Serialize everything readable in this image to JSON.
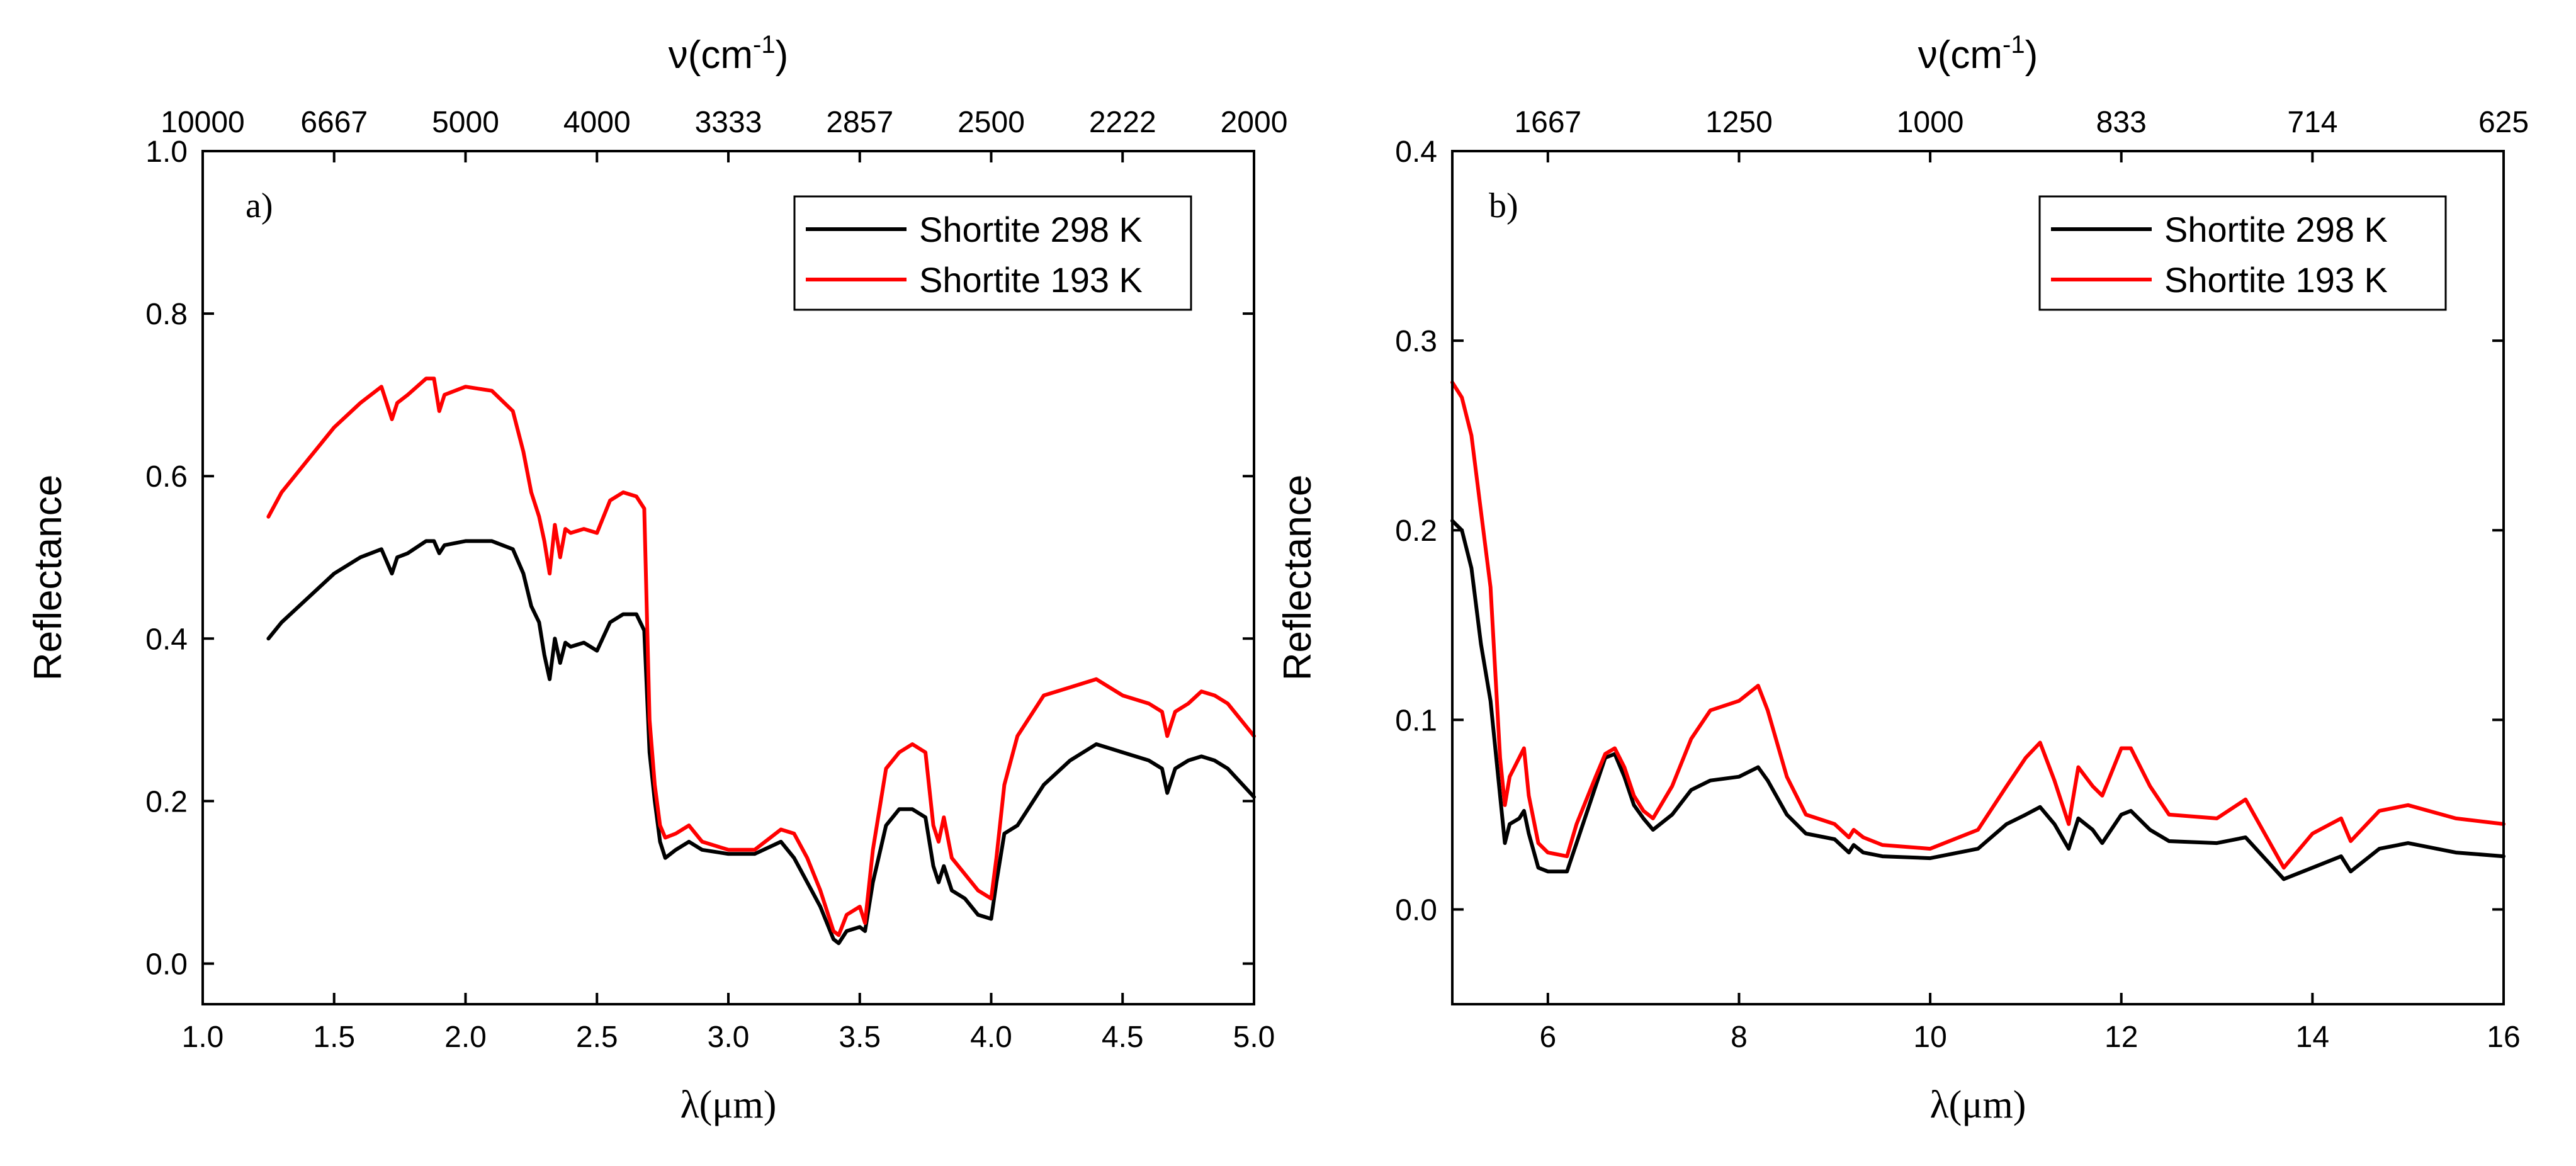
{
  "chart_data": [
    {
      "type": "line",
      "panel_label": "a)",
      "xlabel": "λ(μm)",
      "ylabel": "Reflectance",
      "top_axis_title": "ν(cm",
      "top_axis_title_sup": "-1",
      "top_axis_title_close": ")",
      "xlim": [
        1.0,
        5.0
      ],
      "ylim": [
        -0.05,
        1.0
      ],
      "x_ticks": [
        1.0,
        1.5,
        2.0,
        2.5,
        3.0,
        3.5,
        4.0,
        4.5,
        5.0
      ],
      "x_tick_labels": [
        "1.0",
        "1.5",
        "2.0",
        "2.5",
        "3.0",
        "3.5",
        "4.0",
        "4.5",
        "5.0"
      ],
      "y_ticks": [
        0.0,
        0.2,
        0.4,
        0.6,
        0.8,
        1.0
      ],
      "y_tick_labels": [
        "0.0",
        "0.2",
        "0.4",
        "0.6",
        "0.8",
        "1.0"
      ],
      "top_ticks_um": [
        1.0,
        1.5,
        2.0,
        2.5,
        3.0,
        3.5,
        4.0,
        4.5,
        5.0
      ],
      "top_tick_labels": [
        "10000",
        "6667",
        "5000",
        "4000",
        "3333",
        "2857",
        "2500",
        "2222",
        "2000"
      ],
      "legend_position": "top-right",
      "series": [
        {
          "name": "Shortite 298 K",
          "color": "#000000",
          "x": [
            1.25,
            1.3,
            1.4,
            1.5,
            1.6,
            1.68,
            1.72,
            1.74,
            1.78,
            1.85,
            1.88,
            1.9,
            1.92,
            2.0,
            2.1,
            2.18,
            2.22,
            2.25,
            2.28,
            2.3,
            2.32,
            2.34,
            2.36,
            2.38,
            2.4,
            2.45,
            2.5,
            2.55,
            2.6,
            2.65,
            2.68,
            2.7,
            2.72,
            2.74,
            2.76,
            2.8,
            2.85,
            2.9,
            3.0,
            3.1,
            3.2,
            3.25,
            3.3,
            3.35,
            3.4,
            3.42,
            3.45,
            3.5,
            3.52,
            3.55,
            3.6,
            3.65,
            3.7,
            3.75,
            3.78,
            3.8,
            3.82,
            3.85,
            3.9,
            3.95,
            4.0,
            4.02,
            4.05,
            4.1,
            4.2,
            4.3,
            4.35,
            4.4,
            4.5,
            4.6,
            4.65,
            4.67,
            4.7,
            4.75,
            4.8,
            4.85,
            4.9,
            5.0
          ],
          "y": [
            0.4,
            0.42,
            0.45,
            0.48,
            0.5,
            0.51,
            0.48,
            0.5,
            0.505,
            0.52,
            0.52,
            0.505,
            0.515,
            0.52,
            0.52,
            0.51,
            0.48,
            0.44,
            0.42,
            0.38,
            0.35,
            0.4,
            0.37,
            0.395,
            0.39,
            0.395,
            0.385,
            0.42,
            0.43,
            0.43,
            0.41,
            0.26,
            0.2,
            0.15,
            0.13,
            0.14,
            0.15,
            0.14,
            0.135,
            0.135,
            0.15,
            0.13,
            0.1,
            0.07,
            0.03,
            0.025,
            0.04,
            0.045,
            0.04,
            0.1,
            0.17,
            0.19,
            0.19,
            0.18,
            0.12,
            0.1,
            0.12,
            0.09,
            0.08,
            0.06,
            0.055,
            0.1,
            0.16,
            0.17,
            0.22,
            0.25,
            0.26,
            0.27,
            0.26,
            0.25,
            0.24,
            0.21,
            0.24,
            0.25,
            0.255,
            0.25,
            0.24,
            0.205
          ]
        },
        {
          "name": "Shortite 193 K",
          "color": "#ff0000",
          "x": [
            1.25,
            1.3,
            1.4,
            1.5,
            1.6,
            1.68,
            1.72,
            1.74,
            1.78,
            1.85,
            1.88,
            1.9,
            1.92,
            2.0,
            2.1,
            2.18,
            2.22,
            2.25,
            2.28,
            2.3,
            2.32,
            2.34,
            2.36,
            2.38,
            2.4,
            2.45,
            2.5,
            2.55,
            2.6,
            2.65,
            2.68,
            2.7,
            2.72,
            2.74,
            2.76,
            2.8,
            2.85,
            2.9,
            3.0,
            3.1,
            3.2,
            3.25,
            3.3,
            3.35,
            3.4,
            3.42,
            3.45,
            3.5,
            3.52,
            3.55,
            3.6,
            3.65,
            3.7,
            3.75,
            3.78,
            3.8,
            3.82,
            3.85,
            3.9,
            3.95,
            4.0,
            4.02,
            4.05,
            4.1,
            4.2,
            4.3,
            4.35,
            4.4,
            4.5,
            4.6,
            4.65,
            4.67,
            4.7,
            4.75,
            4.8,
            4.85,
            4.9,
            5.0
          ],
          "y": [
            0.55,
            0.58,
            0.62,
            0.66,
            0.69,
            0.71,
            0.67,
            0.69,
            0.7,
            0.72,
            0.72,
            0.68,
            0.7,
            0.71,
            0.705,
            0.68,
            0.63,
            0.58,
            0.55,
            0.52,
            0.48,
            0.54,
            0.5,
            0.535,
            0.53,
            0.535,
            0.53,
            0.57,
            0.58,
            0.575,
            0.56,
            0.3,
            0.22,
            0.17,
            0.155,
            0.16,
            0.17,
            0.15,
            0.14,
            0.14,
            0.165,
            0.16,
            0.13,
            0.09,
            0.04,
            0.035,
            0.06,
            0.07,
            0.05,
            0.14,
            0.24,
            0.26,
            0.27,
            0.26,
            0.17,
            0.15,
            0.18,
            0.13,
            0.11,
            0.09,
            0.08,
            0.13,
            0.22,
            0.28,
            0.33,
            0.34,
            0.345,
            0.35,
            0.33,
            0.32,
            0.31,
            0.28,
            0.31,
            0.32,
            0.335,
            0.33,
            0.32,
            0.28
          ]
        }
      ]
    },
    {
      "type": "line",
      "panel_label": "b)",
      "xlabel": "λ(μm)",
      "ylabel": "Reflectance",
      "top_axis_title": "ν(cm",
      "top_axis_title_sup": "-1",
      "top_axis_title_close": ")",
      "xlim": [
        5.0,
        16.0
      ],
      "ylim": [
        -0.05,
        0.4
      ],
      "x_ticks": [
        6,
        8,
        10,
        12,
        14,
        16
      ],
      "x_tick_labels": [
        "6",
        "8",
        "10",
        "12",
        "14",
        "16"
      ],
      "y_ticks": [
        0.0,
        0.1,
        0.2,
        0.3,
        0.4
      ],
      "y_tick_labels": [
        "0.0",
        "0.1",
        "0.2",
        "0.3",
        "0.4"
      ],
      "top_ticks_um": [
        6.0,
        8.0,
        10.0,
        12.0,
        14.0,
        16.0
      ],
      "top_tick_labels": [
        "1667",
        "1250",
        "1000",
        "833",
        "714",
        "625"
      ],
      "legend_position": "top-right",
      "series": [
        {
          "name": "Shortite 298 K",
          "color": "#000000",
          "x": [
            5.0,
            5.1,
            5.2,
            5.3,
            5.4,
            5.5,
            5.55,
            5.6,
            5.7,
            5.75,
            5.8,
            5.9,
            6.0,
            6.2,
            6.3,
            6.5,
            6.6,
            6.7,
            6.8,
            6.9,
            7.0,
            7.1,
            7.3,
            7.5,
            7.7,
            8.0,
            8.2,
            8.3,
            8.5,
            8.7,
            9.0,
            9.15,
            9.2,
            9.3,
            9.5,
            10.0,
            10.5,
            10.8,
            11.0,
            11.15,
            11.3,
            11.45,
            11.55,
            11.7,
            11.8,
            12.0,
            12.1,
            12.3,
            12.5,
            13.0,
            13.3,
            13.7,
            14.0,
            14.3,
            14.4,
            14.7,
            15.0,
            15.5,
            16.0
          ],
          "y": [
            0.205,
            0.2,
            0.18,
            0.14,
            0.11,
            0.06,
            0.035,
            0.045,
            0.048,
            0.052,
            0.04,
            0.022,
            0.02,
            0.02,
            0.035,
            0.065,
            0.08,
            0.082,
            0.07,
            0.055,
            0.048,
            0.042,
            0.05,
            0.063,
            0.068,
            0.07,
            0.075,
            0.068,
            0.05,
            0.04,
            0.037,
            0.03,
            0.034,
            0.03,
            0.028,
            0.027,
            0.032,
            0.045,
            0.05,
            0.054,
            0.045,
            0.032,
            0.048,
            0.042,
            0.035,
            0.05,
            0.052,
            0.042,
            0.036,
            0.035,
            0.038,
            0.016,
            0.022,
            0.028,
            0.02,
            0.032,
            0.035,
            0.03,
            0.028
          ]
        },
        {
          "name": "Shortite 193 K",
          "color": "#ff0000",
          "x": [
            5.0,
            5.1,
            5.2,
            5.3,
            5.4,
            5.5,
            5.55,
            5.6,
            5.7,
            5.75,
            5.8,
            5.9,
            6.0,
            6.2,
            6.3,
            6.5,
            6.6,
            6.7,
            6.8,
            6.9,
            7.0,
            7.1,
            7.3,
            7.5,
            7.7,
            8.0,
            8.2,
            8.3,
            8.5,
            8.7,
            9.0,
            9.15,
            9.2,
            9.3,
            9.5,
            10.0,
            10.5,
            10.8,
            11.0,
            11.15,
            11.3,
            11.45,
            11.55,
            11.7,
            11.8,
            12.0,
            12.1,
            12.3,
            12.5,
            13.0,
            13.3,
            13.7,
            14.0,
            14.3,
            14.4,
            14.7,
            15.0,
            15.5,
            16.0
          ],
          "y": [
            0.278,
            0.27,
            0.25,
            0.21,
            0.17,
            0.08,
            0.055,
            0.07,
            0.08,
            0.085,
            0.06,
            0.035,
            0.03,
            0.028,
            0.045,
            0.07,
            0.082,
            0.085,
            0.075,
            0.06,
            0.052,
            0.048,
            0.065,
            0.09,
            0.105,
            0.11,
            0.118,
            0.105,
            0.07,
            0.05,
            0.045,
            0.038,
            0.042,
            0.038,
            0.034,
            0.032,
            0.042,
            0.065,
            0.08,
            0.088,
            0.068,
            0.045,
            0.075,
            0.065,
            0.06,
            0.085,
            0.085,
            0.065,
            0.05,
            0.048,
            0.058,
            0.022,
            0.04,
            0.048,
            0.036,
            0.052,
            0.055,
            0.048,
            0.045
          ]
        }
      ]
    }
  ]
}
